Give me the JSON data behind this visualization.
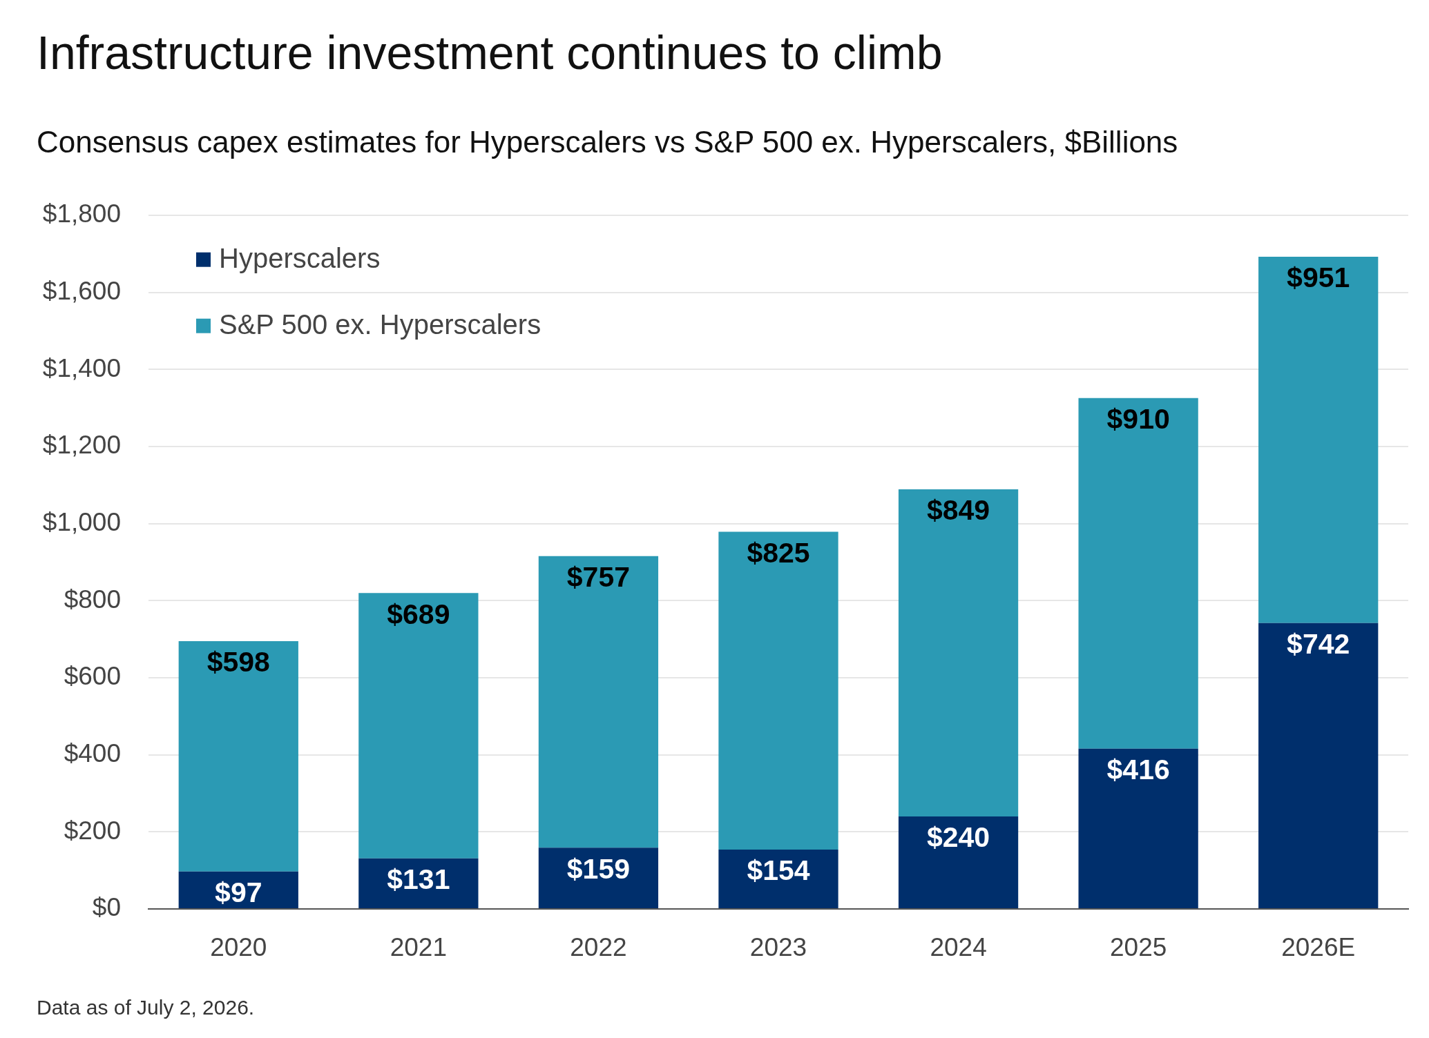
{
  "chart_data": {
    "type": "bar",
    "title": "Infrastructure investment continues to climb",
    "subtitle": "Consensus capex estimates for Hyperscalers vs S&P 500 ex. Hyperscalers, $Billions",
    "annotations": [
      "Data as of July 2, 2026."
    ],
    "categories": [
      "2020",
      "2021",
      "2022",
      "2023",
      "2024",
      "2025",
      "2026E"
    ],
    "stacked": true,
    "series": [
      {
        "name": "Hyperscalers",
        "color": "#002f6c",
        "values": [
          97,
          131,
          159,
          154,
          240,
          416,
          742
        ],
        "value_labels": [
          "$97",
          "$131",
          "$159",
          "$154",
          "$240",
          "$416",
          "$742"
        ]
      },
      {
        "name": "S&P 500 ex. Hyperscalers",
        "color": "#2b9ab4",
        "values": [
          598,
          689,
          757,
          825,
          849,
          910,
          951
        ],
        "value_labels": [
          "$598",
          "$689",
          "$757",
          "$825",
          "$849",
          "$910",
          "$951"
        ]
      }
    ],
    "ylim": [
      0,
      1800
    ],
    "yticks": [
      {
        "value": 0,
        "label": "$0"
      },
      {
        "value": 200,
        "label": "$200"
      },
      {
        "value": 400,
        "label": "$400"
      },
      {
        "value": 600,
        "label": "$600"
      },
      {
        "value": 800,
        "label": "$800"
      },
      {
        "value": 1000,
        "label": "$1,000"
      },
      {
        "value": 1200,
        "label": "$1,200"
      },
      {
        "value": 1400,
        "label": "$1,400"
      },
      {
        "value": 1600,
        "label": "$1,600"
      },
      {
        "value": 1800,
        "label": "$1,800"
      }
    ],
    "grid": "y",
    "legend": "top left"
  }
}
